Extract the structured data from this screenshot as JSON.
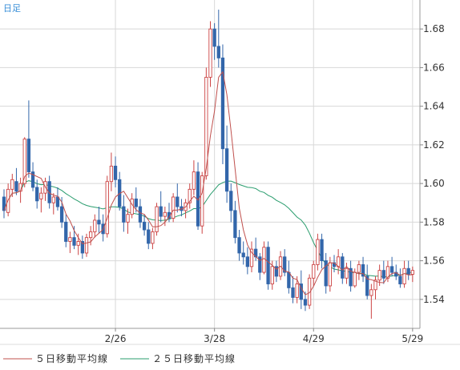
{
  "period_label": "日足",
  "legend": {
    "ma5_label": "５日移動平均線",
    "ma25_label": "２５日移動平均線"
  },
  "colors": {
    "up": "#cc4444",
    "down": "#3366aa",
    "ma5": "#c0504d",
    "ma25": "#2a9d6e",
    "grid": "#d8d8d8"
  },
  "chart_data": {
    "type": "candlestick",
    "ylim": [
      1.525,
      1.695
    ],
    "yticks": [
      1.54,
      1.56,
      1.58,
      1.6,
      1.62,
      1.64,
      1.66,
      1.68
    ],
    "xtick_labels": [
      {
        "label": "2/26",
        "index": 27
      },
      {
        "label": "3/28",
        "index": 51
      },
      {
        "label": "4/29",
        "index": 75
      },
      {
        "label": "5/29",
        "index": 99
      }
    ],
    "grid": true,
    "series": [
      {
        "name": "candles",
        "ohlc": [
          [
            1.593,
            1.597,
            1.582,
            1.586
          ],
          [
            1.585,
            1.6,
            1.583,
            1.597
          ],
          [
            1.597,
            1.605,
            1.593,
            1.602
          ],
          [
            1.601,
            1.608,
            1.594,
            1.596
          ],
          [
            1.596,
            1.603,
            1.59,
            1.6
          ],
          [
            1.6,
            1.624,
            1.598,
            1.623
          ],
          [
            1.623,
            1.643,
            1.603,
            1.606
          ],
          [
            1.606,
            1.611,
            1.596,
            1.598
          ],
          [
            1.598,
            1.602,
            1.587,
            1.591
          ],
          [
            1.592,
            1.598,
            1.585,
            1.595
          ],
          [
            1.595,
            1.603,
            1.591,
            1.601
          ],
          [
            1.601,
            1.604,
            1.587,
            1.59
          ],
          [
            1.59,
            1.595,
            1.584,
            1.593
          ],
          [
            1.593,
            1.598,
            1.586,
            1.588
          ],
          [
            1.588,
            1.593,
            1.577,
            1.58
          ],
          [
            1.58,
            1.584,
            1.567,
            1.57
          ],
          [
            1.57,
            1.575,
            1.564,
            1.572
          ],
          [
            1.572,
            1.578,
            1.566,
            1.568
          ],
          [
            1.568,
            1.574,
            1.563,
            1.57
          ],
          [
            1.57,
            1.573,
            1.561,
            1.564
          ],
          [
            1.564,
            1.574,
            1.562,
            1.572
          ],
          [
            1.572,
            1.578,
            1.568,
            1.575
          ],
          [
            1.575,
            1.584,
            1.572,
            1.581
          ],
          [
            1.581,
            1.588,
            1.574,
            1.579
          ],
          [
            1.579,
            1.584,
            1.57,
            1.574
          ],
          [
            1.574,
            1.604,
            1.572,
            1.601
          ],
          [
            1.601,
            1.616,
            1.596,
            1.609
          ],
          [
            1.609,
            1.614,
            1.598,
            1.602
          ],
          [
            1.602,
            1.606,
            1.586,
            1.588
          ],
          [
            1.588,
            1.594,
            1.575,
            1.58
          ],
          [
            1.58,
            1.587,
            1.574,
            1.584
          ],
          [
            1.584,
            1.595,
            1.582,
            1.592
          ],
          [
            1.592,
            1.598,
            1.585,
            1.588
          ],
          [
            1.588,
            1.592,
            1.577,
            1.58
          ],
          [
            1.58,
            1.584,
            1.573,
            1.576
          ],
          [
            1.576,
            1.58,
            1.566,
            1.569
          ],
          [
            1.569,
            1.577,
            1.566,
            1.575
          ],
          [
            1.575,
            1.59,
            1.573,
            1.588
          ],
          [
            1.588,
            1.596,
            1.58,
            1.583
          ],
          [
            1.583,
            1.588,
            1.578,
            1.585
          ],
          [
            1.585,
            1.59,
            1.58,
            1.582
          ],
          [
            1.582,
            1.595,
            1.58,
            1.593
          ],
          [
            1.593,
            1.6,
            1.585,
            1.588
          ],
          [
            1.588,
            1.592,
            1.583,
            1.586
          ],
          [
            1.586,
            1.592,
            1.582,
            1.59
          ],
          [
            1.59,
            1.6,
            1.587,
            1.597
          ],
          [
            1.597,
            1.612,
            1.594,
            1.606
          ],
          [
            1.606,
            1.611,
            1.576,
            1.578
          ],
          [
            1.578,
            1.606,
            1.574,
            1.604
          ],
          [
            1.604,
            1.66,
            1.602,
            1.655
          ],
          [
            1.655,
            1.684,
            1.65,
            1.68
          ],
          [
            1.68,
            1.683,
            1.664,
            1.671
          ],
          [
            1.671,
            1.69,
            1.66,
            1.665
          ],
          [
            1.665,
            1.672,
            1.61,
            1.618
          ],
          [
            1.618,
            1.63,
            1.59,
            1.596
          ],
          [
            1.596,
            1.6,
            1.58,
            1.586
          ],
          [
            1.586,
            1.591,
            1.569,
            1.572
          ],
          [
            1.572,
            1.576,
            1.56,
            1.564
          ],
          [
            1.564,
            1.57,
            1.558,
            1.562
          ],
          [
            1.562,
            1.567,
            1.553,
            1.557
          ],
          [
            1.557,
            1.57,
            1.554,
            1.566
          ],
          [
            1.566,
            1.572,
            1.56,
            1.562
          ],
          [
            1.562,
            1.564,
            1.55,
            1.554
          ],
          [
            1.554,
            1.57,
            1.553,
            1.567
          ],
          [
            1.567,
            1.57,
            1.545,
            1.548
          ],
          [
            1.548,
            1.56,
            1.545,
            1.557
          ],
          [
            1.557,
            1.56,
            1.549,
            1.552
          ],
          [
            1.552,
            1.565,
            1.55,
            1.562
          ],
          [
            1.562,
            1.566,
            1.552,
            1.554
          ],
          [
            1.554,
            1.56,
            1.543,
            1.546
          ],
          [
            1.546,
            1.552,
            1.538,
            1.541
          ],
          [
            1.541,
            1.552,
            1.538,
            1.548
          ],
          [
            1.548,
            1.555,
            1.535,
            1.54
          ],
          [
            1.54,
            1.544,
            1.534,
            1.537
          ],
          [
            1.537,
            1.553,
            1.535,
            1.551
          ],
          [
            1.551,
            1.56,
            1.547,
            1.558
          ],
          [
            1.558,
            1.574,
            1.555,
            1.571
          ],
          [
            1.571,
            1.574,
            1.556,
            1.56
          ],
          [
            1.56,
            1.564,
            1.543,
            1.547
          ],
          [
            1.547,
            1.562,
            1.544,
            1.559
          ],
          [
            1.559,
            1.563,
            1.554,
            1.557
          ],
          [
            1.557,
            1.566,
            1.553,
            1.562
          ],
          [
            1.562,
            1.564,
            1.548,
            1.551
          ],
          [
            1.551,
            1.559,
            1.548,
            1.556
          ],
          [
            1.556,
            1.56,
            1.544,
            1.547
          ],
          [
            1.547,
            1.556,
            1.546,
            1.554
          ],
          [
            1.554,
            1.56,
            1.55,
            1.558
          ],
          [
            1.558,
            1.562,
            1.549,
            1.552
          ],
          [
            1.552,
            1.558,
            1.54,
            1.542
          ],
          [
            1.542,
            1.548,
            1.53,
            1.545
          ],
          [
            1.545,
            1.552,
            1.54,
            1.55
          ],
          [
            1.55,
            1.558,
            1.547,
            1.555
          ],
          [
            1.555,
            1.56,
            1.548,
            1.551
          ],
          [
            1.551,
            1.56,
            1.549,
            1.557
          ],
          [
            1.557,
            1.562,
            1.552,
            1.554
          ],
          [
            1.554,
            1.558,
            1.55,
            1.552
          ],
          [
            1.552,
            1.556,
            1.546,
            1.548
          ],
          [
            1.548,
            1.56,
            1.546,
            1.556
          ],
          [
            1.556,
            1.56,
            1.55,
            1.553
          ],
          [
            1.553,
            1.557,
            1.549,
            1.555
          ]
        ]
      },
      {
        "name": "５日移動平均線",
        "ma_period": 5
      },
      {
        "name": "２５日移動平均線",
        "ma_period": 25
      }
    ]
  }
}
